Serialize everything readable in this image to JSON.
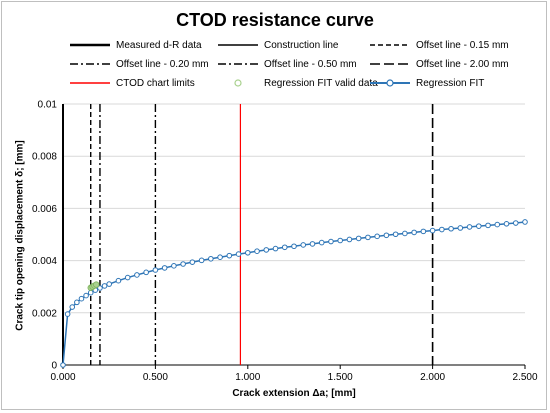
{
  "chart_data": {
    "type": "line",
    "title": "CTOD resistance curve",
    "xlabel": "Crack extension Δa; [mm]",
    "ylabel": "Crack tip opening displacement δ; [mm]",
    "xlim": [
      0,
      2.5
    ],
    "ylim": [
      0,
      0.01
    ],
    "x_ticks": [
      "0.000",
      "0.500",
      "1.000",
      "1.500",
      "2.000",
      "2.500"
    ],
    "y_ticks": [
      "0",
      "0.002",
      "0.004",
      "0.006",
      "0.008",
      "0.01"
    ],
    "grid": "horizontal",
    "legend": [
      {
        "label": "Measured d-R data",
        "style": "thick-solid",
        "color": "#000000"
      },
      {
        "label": "Construction line",
        "style": "solid",
        "color": "#000000"
      },
      {
        "label": "Offset line - 0.15 mm",
        "style": "dashed",
        "color": "#000000"
      },
      {
        "label": "Offset line - 0.20 mm",
        "style": "dash-dot",
        "color": "#000000"
      },
      {
        "label": "Offset line - 0.50 mm",
        "style": "dash-dot",
        "color": "#000000"
      },
      {
        "label": "Offset line - 2.00 mm",
        "style": "long-dash",
        "color": "#000000"
      },
      {
        "label": "CTOD chart limits",
        "style": "solid",
        "color": "#ff0000"
      },
      {
        "label": "Regression FIT valid data",
        "style": "marker-circle",
        "color": "#a9d18e"
      },
      {
        "label": "Regression FIT",
        "style": "line-marker",
        "color": "#2e75b6"
      }
    ],
    "vertical_lines": [
      {
        "name": "Measured d-R data",
        "x": 0.0,
        "style": "thick-solid",
        "color": "#000000"
      },
      {
        "name": "Offset line - 0.15 mm",
        "x": 0.15,
        "style": "dashed",
        "color": "#000000"
      },
      {
        "name": "Offset line - 0.20 mm",
        "x": 0.2,
        "style": "dash-dot",
        "color": "#000000"
      },
      {
        "name": "Offset line - 0.50 mm",
        "x": 0.5,
        "style": "dash-dot",
        "color": "#000000"
      },
      {
        "name": "CTOD chart limits",
        "x": 0.96,
        "style": "solid",
        "color": "#ff0000"
      },
      {
        "name": "Offset line - 2.00 mm",
        "x": 2.0,
        "style": "long-dash",
        "color": "#000000"
      }
    ],
    "series": [
      {
        "name": "Regression FIT",
        "color": "#2e75b6",
        "x": [
          0.0,
          0.025,
          0.05,
          0.075,
          0.1,
          0.125,
          0.15,
          0.175,
          0.2,
          0.225,
          0.25,
          0.3,
          0.35,
          0.4,
          0.45,
          0.5,
          0.55,
          0.6,
          0.65,
          0.7,
          0.75,
          0.8,
          0.85,
          0.9,
          0.95,
          1.0,
          1.05,
          1.1,
          1.15,
          1.2,
          1.25,
          1.3,
          1.35,
          1.4,
          1.45,
          1.5,
          1.55,
          1.6,
          1.65,
          1.7,
          1.75,
          1.8,
          1.85,
          1.9,
          1.95,
          2.0,
          2.05,
          2.1,
          2.15,
          2.2,
          2.25,
          2.3,
          2.35,
          2.4,
          2.45,
          2.5
        ],
        "y": [
          0.0,
          0.00195,
          0.00222,
          0.0024,
          0.00254,
          0.00266,
          0.00277,
          0.00287,
          0.00295,
          0.00303,
          0.0031,
          0.00323,
          0.00335,
          0.00345,
          0.00355,
          0.00364,
          0.00372,
          0.0038,
          0.00387,
          0.00394,
          0.00401,
          0.00407,
          0.00413,
          0.00419,
          0.00425,
          0.0043,
          0.00436,
          0.00441,
          0.00446,
          0.00451,
          0.00455,
          0.0046,
          0.00464,
          0.00469,
          0.00473,
          0.00477,
          0.00481,
          0.00485,
          0.00489,
          0.00493,
          0.00497,
          0.00501,
          0.00504,
          0.00508,
          0.00512,
          0.00515,
          0.00519,
          0.00522,
          0.00525,
          0.00529,
          0.00532,
          0.00535,
          0.00538,
          0.00541,
          0.00544,
          0.00548
        ]
      },
      {
        "name": "Regression FIT valid data",
        "color": "#a9d18e",
        "x": [
          0.15,
          0.16,
          0.17,
          0.18
        ],
        "y": [
          0.00296,
          0.003,
          0.00304,
          0.00308
        ]
      }
    ]
  }
}
